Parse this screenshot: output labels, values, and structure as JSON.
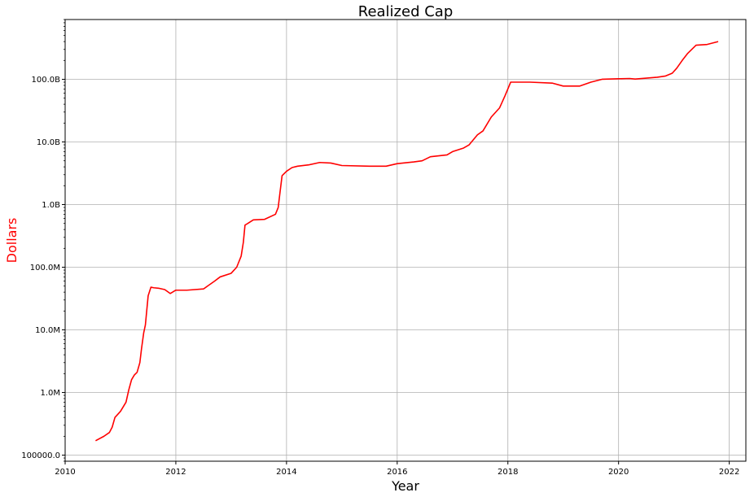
{
  "chart_data": {
    "type": "line",
    "title": "Realized Cap",
    "xlabel": "Year",
    "ylabel": "Dollars",
    "ylabel_color": "#ff0000",
    "line_color": "#ff0000",
    "grid": true,
    "yscale": "log",
    "xlim": [
      2010,
      2022.3
    ],
    "ylim": [
      80000,
      900000000000
    ],
    "x_ticks": [
      2010,
      2012,
      2014,
      2016,
      2018,
      2020,
      2022
    ],
    "x_tick_labels": [
      "2010",
      "2012",
      "2014",
      "2016",
      "2018",
      "2020",
      "2022"
    ],
    "y_ticks": [
      100000,
      1000000,
      10000000,
      100000000,
      1000000000,
      10000000000,
      100000000000
    ],
    "y_tick_labels": [
      "100000.0",
      "1.0M",
      "10.0M",
      "100.0M",
      "1.0B",
      "10.0B",
      "100.0B"
    ],
    "series": [
      {
        "name": "",
        "x": [
          2010.55,
          2010.7,
          2010.8,
          2010.85,
          2010.9,
          2011.0,
          2011.1,
          2011.15,
          2011.2,
          2011.25,
          2011.3,
          2011.35,
          2011.38,
          2011.42,
          2011.45,
          2011.5,
          2011.55,
          2011.6,
          2011.7,
          2011.8,
          2011.9,
          2012.0,
          2012.2,
          2012.5,
          2012.7,
          2012.8,
          2013.0,
          2013.1,
          2013.18,
          2013.22,
          2013.25,
          2013.3,
          2013.4,
          2013.6,
          2013.8,
          2013.85,
          2013.88,
          2013.92,
          2014.0,
          2014.1,
          2014.2,
          2014.4,
          2014.6,
          2014.8,
          2015.0,
          2015.5,
          2015.8,
          2016.0,
          2016.3,
          2016.45,
          2016.6,
          2016.9,
          2017.0,
          2017.2,
          2017.3,
          2017.45,
          2017.55,
          2017.7,
          2017.85,
          2017.95,
          2018.05,
          2018.2,
          2018.4,
          2018.8,
          2019.0,
          2019.3,
          2019.5,
          2019.7,
          2020.0,
          2020.2,
          2020.3,
          2020.7,
          2020.85,
          2020.97,
          2021.05,
          2021.15,
          2021.25,
          2021.4,
          2021.6,
          2021.8
        ],
        "y": [
          170000,
          200000,
          230000,
          280000,
          400000,
          500000,
          700000,
          1100000,
          1600000,
          1900000,
          2100000,
          3000000,
          5000000,
          9000000,
          12000000,
          35000000,
          48000000,
          47000000,
          46000000,
          44000000,
          38000000,
          43000000,
          43000000,
          45000000,
          60000000,
          70000000,
          80000000,
          100000000,
          150000000,
          250000000,
          470000000,
          500000000,
          570000000,
          580000000,
          700000000,
          900000000,
          1500000000,
          2900000000,
          3400000000,
          3900000000,
          4100000000,
          4300000000,
          4700000000,
          4600000000,
          4200000000,
          4100000000,
          4100000000,
          4500000000,
          4800000000,
          5000000000,
          5800000000,
          6200000000,
          7000000000,
          8000000000,
          9000000000,
          13000000000,
          15000000000,
          25000000000,
          35000000000,
          55000000000,
          90000000000,
          90000000000,
          90000000000,
          87000000000,
          78000000000,
          78000000000,
          90000000000,
          100000000000,
          102000000000,
          103000000000,
          101000000000,
          108000000000,
          113000000000,
          125000000000,
          150000000000,
          200000000000,
          260000000000,
          350000000000,
          360000000000,
          400000000000
        ]
      }
    ]
  }
}
